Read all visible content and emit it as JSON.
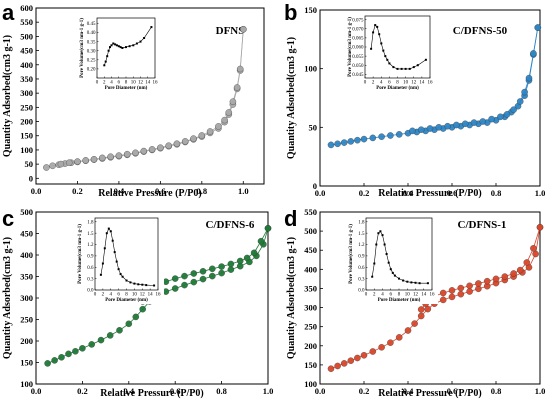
{
  "colors": {
    "a": "#a9a9a9",
    "b": "#2f86c6",
    "c": "#1f7a37",
    "d": "#d9472b",
    "inset_line": "#000000"
  },
  "chart_data": [
    {
      "panel": "a",
      "type": "line",
      "title": "DFNS",
      "xlabel": "Relative Pressure (P/P0)",
      "ylabel": "Quantity Adsorbed(cm3 g-1)",
      "xlim": [
        0,
        1.1
      ],
      "ylim": [
        -20,
        600
      ],
      "xticks": [
        0.0,
        0.2,
        0.4,
        0.6,
        0.8,
        1.0
      ],
      "yticks": [
        0,
        50,
        100,
        150,
        200,
        250,
        300,
        350,
        400,
        450,
        500,
        550,
        600
      ],
      "marker_color": "a",
      "series": [
        {
          "x": [
            0.05,
            0.08,
            0.11,
            0.14,
            0.17,
            0.2,
            0.24,
            0.28,
            0.32,
            0.36,
            0.4,
            0.44,
            0.48,
            0.52,
            0.56,
            0.6,
            0.64,
            0.68,
            0.72,
            0.76,
            0.8,
            0.84,
            0.88,
            0.91,
            0.93,
            0.95,
            0.97,
            0.985,
            1.0
          ],
          "y": [
            38,
            44,
            48,
            52,
            55,
            58,
            62,
            66,
            70,
            74,
            78,
            83,
            88,
            94,
            100,
            106,
            113,
            120,
            128,
            137,
            147,
            160,
            176,
            198,
            225,
            260,
            315,
            380,
            525
          ]
        },
        {
          "x": [
            1.0,
            0.985,
            0.97,
            0.95,
            0.93,
            0.91,
            0.88,
            0.84,
            0.8,
            0.76,
            0.72,
            0.68,
            0.64,
            0.6,
            0.56,
            0.52,
            0.48,
            0.44,
            0.4,
            0.36,
            0.32,
            0.28,
            0.24,
            0.2,
            0.16,
            0.12
          ],
          "y": [
            525,
            385,
            320,
            270,
            232,
            205,
            183,
            165,
            151,
            140,
            130,
            122,
            115,
            108,
            102,
            96,
            90,
            85,
            80,
            76,
            72,
            67,
            63,
            59,
            55,
            50
          ]
        }
      ],
      "inset": {
        "xlabel": "Pore Diameter (nm)",
        "ylabel": "Pore Volume(cm3 nm-1 g-1)",
        "xlim": [
          0,
          16
        ],
        "ylim": [
          0.15,
          0.48
        ],
        "xticks": [
          0,
          2,
          4,
          6,
          8,
          10,
          12,
          14,
          16
        ],
        "yticks": [
          0.2,
          0.25,
          0.3,
          0.35,
          0.4,
          0.45
        ],
        "x": [
          2.0,
          2.4,
          2.8,
          3.2,
          3.6,
          4.0,
          4.5,
          5.0,
          5.5,
          6.0,
          6.5,
          7.0,
          8.0,
          9.0,
          10.0,
          11.0,
          12.0,
          13.0,
          15.0
        ],
        "y": [
          0.22,
          0.24,
          0.27,
          0.3,
          0.32,
          0.33,
          0.34,
          0.335,
          0.33,
          0.325,
          0.32,
          0.315,
          0.32,
          0.325,
          0.33,
          0.34,
          0.35,
          0.37,
          0.43
        ]
      }
    },
    {
      "panel": "b",
      "type": "line",
      "title": "C/DFNS-50",
      "xlabel": "Relative Pressure (P/P0)",
      "ylabel": "Quantity Adsorbed(cm3 g-1)",
      "xlim": [
        0,
        1.0
      ],
      "ylim": [
        0,
        150
      ],
      "xticks": [
        0.0,
        0.2,
        0.4,
        0.6,
        0.8,
        1.0
      ],
      "yticks": [
        0,
        50,
        100,
        150
      ],
      "marker_color": "b",
      "series": [
        {
          "x": [
            0.05,
            0.08,
            0.11,
            0.14,
            0.17,
            0.2,
            0.24,
            0.28,
            0.32,
            0.36,
            0.4,
            0.44,
            0.48,
            0.52,
            0.56,
            0.6,
            0.64,
            0.68,
            0.72,
            0.76,
            0.8,
            0.84,
            0.87,
            0.9,
            0.93,
            0.95,
            0.97,
            0.99
          ],
          "y": [
            35,
            36,
            37,
            38,
            39,
            40,
            41,
            42,
            43,
            44,
            45,
            46,
            47,
            48,
            49,
            50,
            51,
            52,
            53,
            54,
            56,
            59,
            63,
            68,
            77,
            90,
            112,
            135
          ]
        },
        {
          "x": [
            0.99,
            0.97,
            0.95,
            0.93,
            0.91,
            0.88,
            0.85,
            0.82,
            0.78,
            0.74,
            0.7,
            0.66,
            0.62,
            0.58,
            0.54,
            0.5,
            0.46,
            0.42
          ],
          "y": [
            135,
            113,
            92,
            80,
            72,
            65,
            61,
            59,
            57,
            55,
            54,
            53,
            52,
            51,
            50,
            49,
            48,
            47
          ]
        }
      ],
      "inset": {
        "xlabel": "Pore Diameter (nm)",
        "ylabel": "Pore Volume(cm3 nm-1 g-1)",
        "xlim": [
          0,
          16
        ],
        "ylim": [
          0.043,
          0.077
        ],
        "xticks": [
          0,
          2,
          4,
          6,
          8,
          10,
          12,
          14,
          16
        ],
        "yticks": [
          0.045,
          0.05,
          0.055,
          0.06,
          0.065,
          0.07,
          0.075
        ],
        "x": [
          1.5,
          2.0,
          2.5,
          3.0,
          3.5,
          4.0,
          4.5,
          5.0,
          5.5,
          6.0,
          7.0,
          8.0,
          9.0,
          10.0,
          11.0,
          12.0,
          13.0,
          15.0
        ],
        "y": [
          0.059,
          0.068,
          0.072,
          0.071,
          0.067,
          0.062,
          0.058,
          0.055,
          0.053,
          0.051,
          0.049,
          0.048,
          0.048,
          0.048,
          0.048,
          0.049,
          0.05,
          0.053
        ]
      }
    },
    {
      "panel": "c",
      "type": "line",
      "title": "C/DFNS-6",
      "xlabel": "Relative Pressure (P/P0)",
      "ylabel": "Quantity Adsorbed(cm3 g-1)",
      "xlim": [
        0,
        1.0
      ],
      "ylim": [
        100,
        500
      ],
      "xticks": [
        0.0,
        0.2,
        0.4,
        0.6,
        0.8,
        1.0
      ],
      "yticks": [
        100,
        150,
        200,
        250,
        300,
        350,
        400,
        450,
        500
      ],
      "marker_color": "c",
      "series": [
        {
          "x": [
            0.05,
            0.08,
            0.11,
            0.14,
            0.17,
            0.2,
            0.24,
            0.28,
            0.32,
            0.36,
            0.4,
            0.43,
            0.46,
            0.49,
            0.52,
            0.56,
            0.6,
            0.64,
            0.68,
            0.72,
            0.76,
            0.8,
            0.84,
            0.88,
            0.92,
            0.95,
            0.98,
            1.0
          ],
          "y": [
            148,
            155,
            162,
            170,
            176,
            183,
            192,
            202,
            213,
            225,
            240,
            256,
            274,
            292,
            305,
            315,
            322,
            330,
            337,
            344,
            351,
            358,
            366,
            374,
            384,
            398,
            425,
            462
          ]
        },
        {
          "x": [
            1.0,
            0.97,
            0.94,
            0.91,
            0.88,
            0.84,
            0.8,
            0.76,
            0.72,
            0.68,
            0.64,
            0.6,
            0.56,
            0.52,
            0.5,
            0.48,
            0.46
          ],
          "y": [
            462,
            432,
            405,
            393,
            386,
            379,
            373,
            368,
            362,
            357,
            351,
            345,
            338,
            330,
            322,
            310,
            292
          ]
        }
      ],
      "inset": {
        "xlabel": "Pore Diameter (nm)",
        "ylabel": "Pore Volume(cm3 nm-1 g-1)",
        "xlim": [
          0,
          16
        ],
        "ylim": [
          0.0,
          1.9
        ],
        "xticks": [
          0,
          2,
          4,
          6,
          8,
          10,
          12,
          14,
          16
        ],
        "yticks": [
          0.0,
          0.3,
          0.6,
          0.9,
          1.2,
          1.5,
          1.8
        ],
        "x": [
          1.5,
          2.0,
          2.5,
          3.0,
          3.5,
          4.0,
          4.5,
          5.0,
          5.5,
          6.0,
          6.5,
          7.0,
          8.0,
          9.0,
          10.0,
          11.0,
          12.0,
          13.0,
          15.0
        ],
        "y": [
          0.4,
          0.7,
          1.1,
          1.5,
          1.62,
          1.55,
          1.3,
          1.0,
          0.75,
          0.55,
          0.42,
          0.35,
          0.25,
          0.2,
          0.17,
          0.15,
          0.14,
          0.13,
          0.12
        ]
      }
    },
    {
      "panel": "d",
      "type": "line",
      "title": "C/DFNS-1",
      "xlabel": "Relative Pressure (P/P0)",
      "ylabel": "Quantity Adsorbed(cm3 g-1)",
      "xlim": [
        0,
        1.0
      ],
      "ylim": [
        100,
        550
      ],
      "xticks": [
        0.0,
        0.2,
        0.4,
        0.6,
        0.8,
        1.0
      ],
      "yticks": [
        100,
        150,
        200,
        250,
        300,
        350,
        400,
        450,
        500,
        550
      ],
      "marker_color": "d",
      "series": [
        {
          "x": [
            0.05,
            0.08,
            0.11,
            0.14,
            0.17,
            0.2,
            0.24,
            0.28,
            0.32,
            0.36,
            0.4,
            0.43,
            0.46,
            0.49,
            0.52,
            0.56,
            0.6,
            0.64,
            0.68,
            0.72,
            0.76,
            0.8,
            0.84,
            0.88,
            0.92,
            0.95,
            0.98,
            1.0
          ],
          "y": [
            140,
            147,
            154,
            161,
            168,
            175,
            185,
            196,
            208,
            222,
            240,
            258,
            278,
            296,
            310,
            320,
            328,
            335,
            342,
            349,
            356,
            364,
            372,
            381,
            392,
            405,
            440,
            510
          ]
        },
        {
          "x": [
            1.0,
            0.97,
            0.94,
            0.91,
            0.88,
            0.84,
            0.8,
            0.76,
            0.72,
            0.68,
            0.64,
            0.6,
            0.56,
            0.52,
            0.5,
            0.48,
            0.46
          ],
          "y": [
            510,
            455,
            418,
            398,
            389,
            381,
            375,
            369,
            363,
            357,
            351,
            345,
            338,
            330,
            322,
            310,
            295
          ]
        }
      ],
      "inset": {
        "xlabel": "Pore Diameter (nm)",
        "ylabel": "Pore Volume(cm3 nm-1 g-1)",
        "xlim": [
          0,
          16
        ],
        "ylim": [
          0.0,
          1.9
        ],
        "xticks": [
          0,
          2,
          4,
          6,
          8,
          10,
          12,
          14,
          16
        ],
        "yticks": [
          0.0,
          0.3,
          0.6,
          0.9,
          1.2,
          1.5,
          1.8
        ],
        "x": [
          1.5,
          2.0,
          2.5,
          3.0,
          3.5,
          4.0,
          4.5,
          5.0,
          5.5,
          6.0,
          6.5,
          7.0,
          8.0,
          9.0,
          10.0,
          11.0,
          12.0,
          13.0,
          15.0
        ],
        "y": [
          0.35,
          0.7,
          1.2,
          1.5,
          1.55,
          1.45,
          1.2,
          0.95,
          0.72,
          0.55,
          0.45,
          0.38,
          0.3,
          0.25,
          0.22,
          0.2,
          0.19,
          0.18,
          0.18
        ]
      }
    }
  ]
}
